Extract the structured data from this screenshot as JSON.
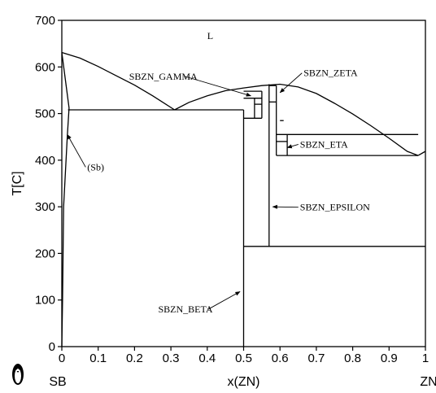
{
  "chart_data": {
    "type": "line",
    "title": "",
    "xlabel": "x(ZN)",
    "ylabel": "T[C]",
    "xlim": [
      0,
      1
    ],
    "ylim": [
      0,
      700
    ],
    "x_ticks": [
      0,
      0.1,
      0.2,
      0.3,
      0.4,
      0.5,
      0.6,
      0.7,
      0.8,
      0.9,
      1
    ],
    "x_tick_labels": [
      "0",
      "0.1",
      "0.2",
      "0.3",
      "0.4",
      "0.5",
      "0.6",
      "0.7",
      "0.8",
      "0.9",
      "1"
    ],
    "y_ticks": [
      0,
      100,
      200,
      300,
      400,
      500,
      600,
      700
    ],
    "y_tick_labels": [
      "0",
      "100",
      "200",
      "300",
      "400",
      "500",
      "600",
      "700"
    ],
    "x_end_labels": {
      "left": "SB",
      "right": "ZN"
    },
    "grid": false,
    "logo": "penguin-logo",
    "phase_lines": [
      [
        [
          0,
          631
        ],
        [
          0.05,
          619
        ],
        [
          0.1,
          601
        ],
        [
          0.15,
          581
        ],
        [
          0.2,
          561
        ],
        [
          0.25,
          538
        ],
        [
          0.31,
          508
        ]
      ],
      [
        [
          0.31,
          508
        ],
        [
          0.35,
          524
        ],
        [
          0.4,
          538
        ],
        [
          0.45,
          549
        ],
        [
          0.5,
          555
        ],
        [
          0.55,
          560
        ],
        [
          0.6,
          563
        ],
        [
          0.65,
          557
        ],
        [
          0.7,
          543
        ],
        [
          0.75,
          522
        ],
        [
          0.8,
          499
        ],
        [
          0.85,
          474
        ],
        [
          0.9,
          447
        ],
        [
          0.95,
          419
        ],
        [
          0.98,
          410
        ]
      ],
      [
        [
          0.98,
          410
        ],
        [
          1,
          419
        ]
      ],
      [
        [
          0,
          631
        ],
        [
          0.02,
          512
        ],
        [
          0.015,
          450
        ],
        [
          0.005,
          300
        ],
        [
          0.002,
          100
        ],
        [
          0,
          0
        ]
      ],
      [
        [
          0.017,
          508
        ],
        [
          0.5,
          508
        ]
      ],
      [
        [
          0.5,
          508
        ],
        [
          0.5,
          0
        ]
      ],
      [
        [
          0.5,
          215
        ],
        [
          1,
          215
        ]
      ],
      [
        [
          0.5,
          548
        ],
        [
          0.55,
          548
        ]
      ],
      [
        [
          0.5,
          533
        ],
        [
          0.55,
          533
        ]
      ],
      [
        [
          0.5,
          490
        ],
        [
          0.55,
          490
        ]
      ],
      [
        [
          0.53,
          533
        ],
        [
          0.53,
          490
        ]
      ],
      [
        [
          0.55,
          548
        ],
        [
          0.55,
          490
        ]
      ],
      [
        [
          0.53,
          520
        ],
        [
          0.55,
          520
        ]
      ],
      [
        [
          0.57,
          563
        ],
        [
          0.57,
          215
        ]
      ],
      [
        [
          0.59,
          560
        ],
        [
          0.59,
          410
        ]
      ],
      [
        [
          0.57,
          560
        ],
        [
          0.59,
          560
        ]
      ],
      [
        [
          0.57,
          525
        ],
        [
          0.59,
          525
        ]
      ],
      [
        [
          0.59,
          455
        ],
        [
          0.98,
          455
        ]
      ],
      [
        [
          0.59,
          440
        ],
        [
          0.62,
          440
        ]
      ],
      [
        [
          0.62,
          455
        ],
        [
          0.62,
          410
        ]
      ],
      [
        [
          0.59,
          410
        ],
        [
          0.98,
          410
        ]
      ],
      [
        [
          0.6,
          485
        ],
        [
          0.61,
          485
        ]
      ]
    ],
    "annotations": [
      {
        "text": "L",
        "x": 0.4,
        "y": 660
      },
      {
        "text": "SBZN_GAMMA",
        "x": 0.185,
        "y": 573,
        "arrow_to": [
          0.52,
          538
        ]
      },
      {
        "text": "SBZN_ZETA",
        "x": 0.665,
        "y": 580,
        "arrow_to": [
          0.6,
          545
        ]
      },
      {
        "text": "SBZN_ETA",
        "x": 0.655,
        "y": 427,
        "arrow_to": [
          0.62,
          427
        ]
      },
      {
        "text": "SBZN_EPSILON",
        "x": 0.655,
        "y": 292,
        "arrow_to": [
          0.58,
          300
        ]
      },
      {
        "text": "(Sb)",
        "x": 0.07,
        "y": 378,
        "arrow_to": [
          0.015,
          455
        ]
      },
      {
        "text": "SBZN_BETA",
        "x": 0.265,
        "y": 73,
        "arrow_to": [
          0.49,
          118
        ]
      }
    ]
  }
}
